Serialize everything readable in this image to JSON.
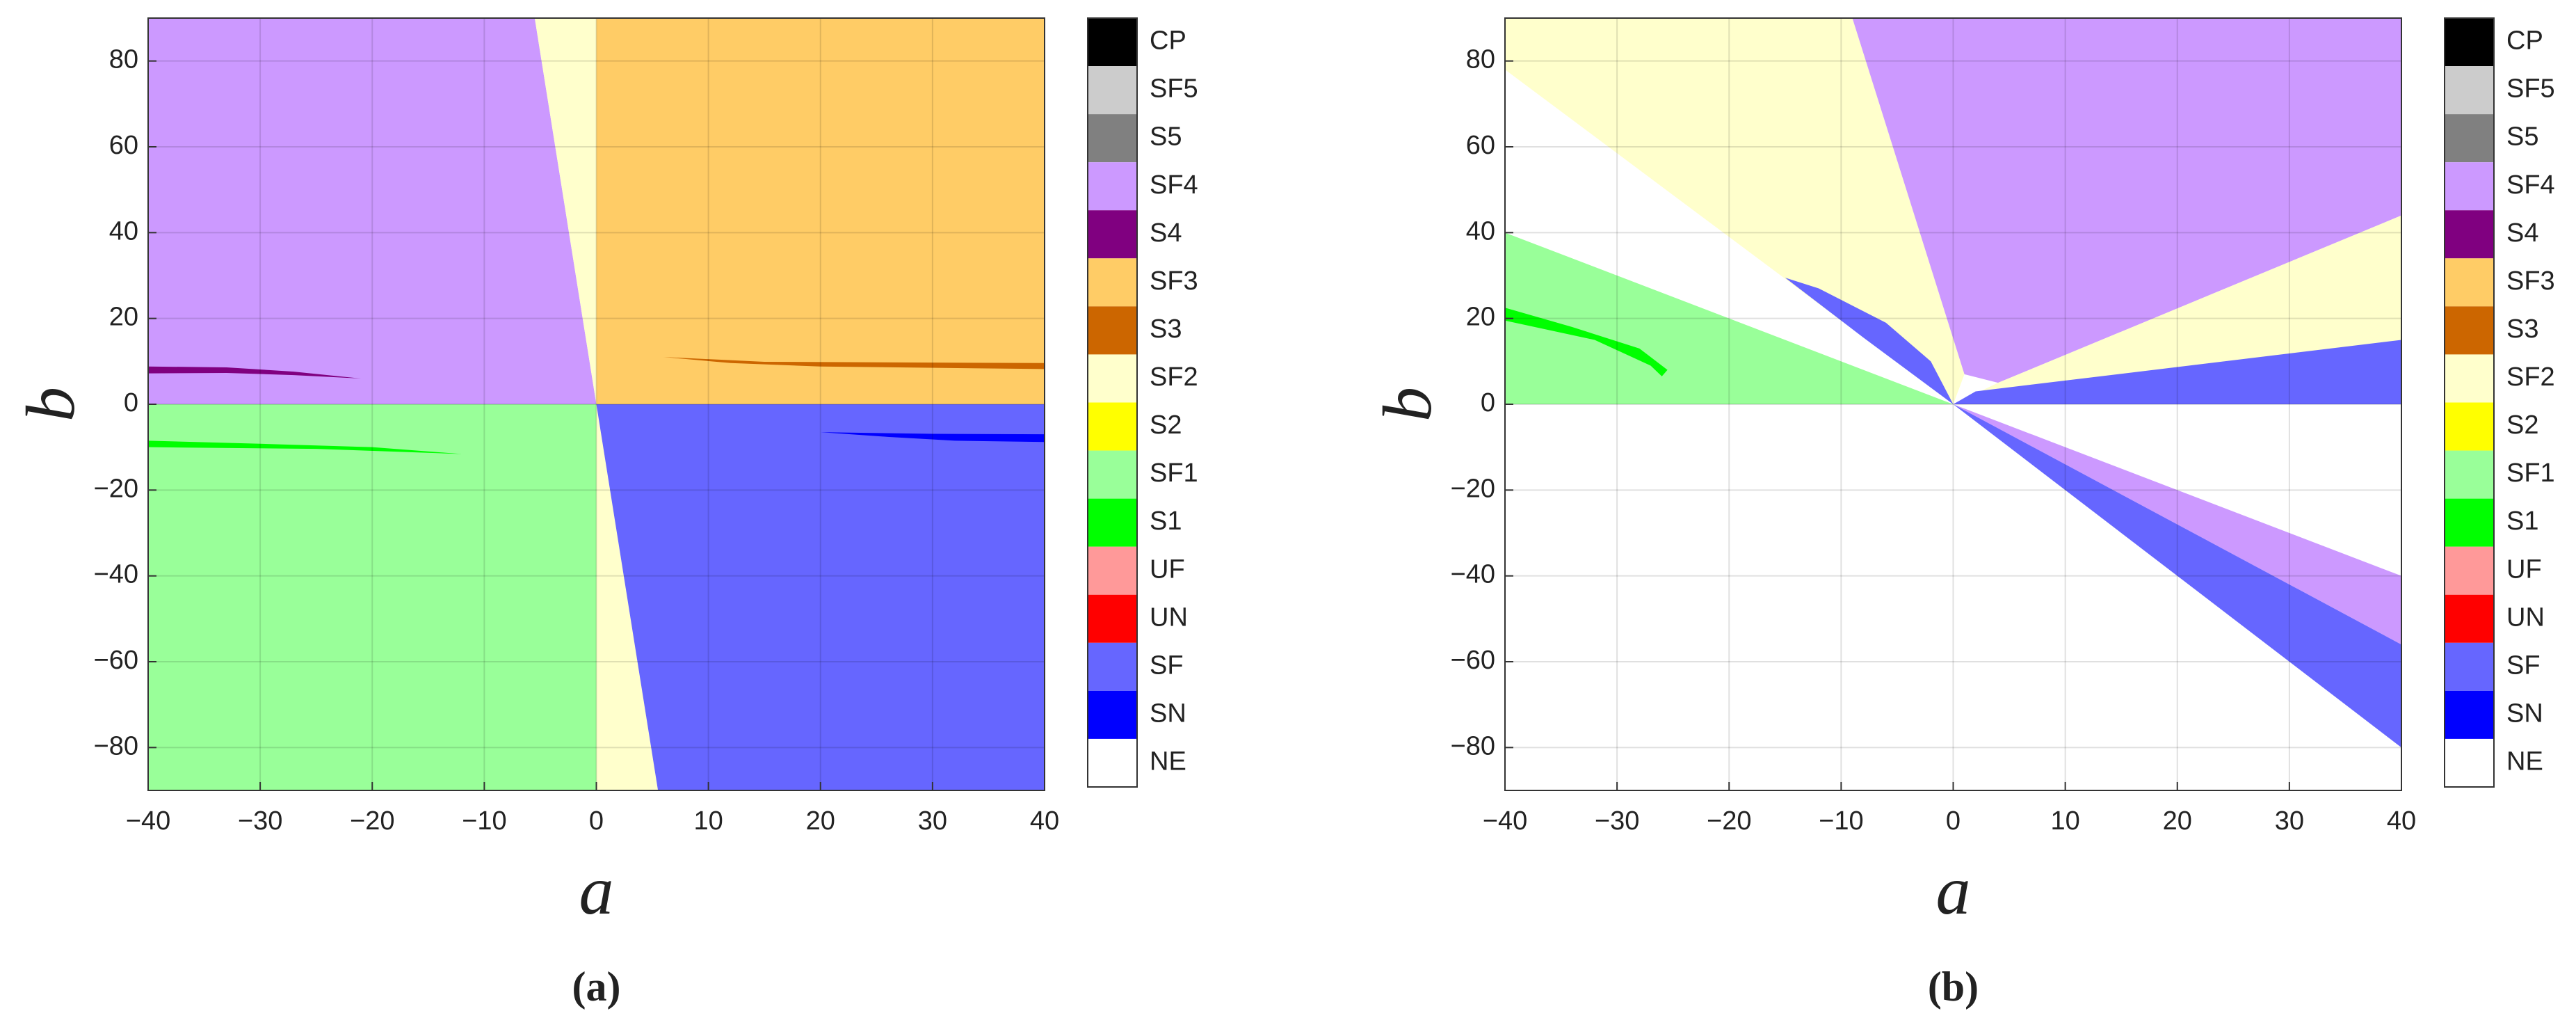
{
  "chart_data": [
    {
      "type": "region",
      "caption": "(a)",
      "xlabel": "a",
      "ylabel": "b",
      "xlim": [
        -40,
        40
      ],
      "ylim": [
        -90,
        90
      ],
      "grid": true,
      "xticks": [
        {
          "value": -40,
          "label": "−40"
        },
        {
          "value": -30,
          "label": "−30"
        },
        {
          "value": -20,
          "label": "−20"
        },
        {
          "value": -10,
          "label": "−10"
        },
        0,
        10,
        20,
        30,
        40
      ],
      "yticks": [
        {
          "value": -80,
          "label": "−80"
        },
        {
          "value": -60,
          "label": "−60"
        },
        {
          "value": -40,
          "label": "−40"
        },
        {
          "value": -20,
          "label": "−20"
        },
        0,
        20,
        40,
        60,
        80
      ],
      "legend": [
        {
          "name": "CP",
          "color": "#000000"
        },
        {
          "name": "SF5",
          "color": "#cccccc"
        },
        {
          "name": "S5",
          "color": "#808080"
        },
        {
          "name": "SF4",
          "color": "#cc99ff"
        },
        {
          "name": "S4",
          "color": "#800080"
        },
        {
          "name": "SF3",
          "color": "#ffcc66"
        },
        {
          "name": "S3",
          "color": "#cc6600"
        },
        {
          "name": "SF2",
          "color": "#ffffcc"
        },
        {
          "name": "S2",
          "color": "#ffff00"
        },
        {
          "name": "SF1",
          "color": "#99ff99"
        },
        {
          "name": "S1",
          "color": "#00ff00"
        },
        {
          "name": "UF",
          "color": "#ff9999"
        },
        {
          "name": "UN",
          "color": "#ff0000"
        },
        {
          "name": "SF",
          "color": "#6666ff"
        },
        {
          "name": "SN",
          "color": "#0000ff"
        },
        {
          "name": "NE",
          "color": "#ffffff"
        }
      ],
      "regions": [
        {
          "color": "#cc99ff",
          "x": [
            -40,
            -40,
            -5.5,
            0
          ],
          "y": [
            0,
            90,
            90,
            0
          ]
        },
        {
          "color": "#ffffcc",
          "x": [
            -5.5,
            0,
            0
          ],
          "y": [
            90,
            90,
            0
          ]
        },
        {
          "color": "#ffcc66",
          "x": [
            0,
            0,
            40,
            40
          ],
          "y": [
            0,
            90,
            90,
            0
          ]
        },
        {
          "color": "#99ff99",
          "x": [
            -40,
            0,
            0,
            -40
          ],
          "y": [
            0,
            0,
            -90,
            -90
          ]
        },
        {
          "color": "#ffffcc",
          "x": [
            0,
            0,
            5.5
          ],
          "y": [
            0,
            -90,
            -90
          ]
        },
        {
          "color": "#6666ff",
          "x": [
            0,
            5.5,
            40,
            40
          ],
          "y": [
            0,
            -90,
            -90,
            0
          ]
        },
        {
          "color": "#800080",
          "x": [
            -40,
            -40,
            -33,
            -27,
            -21,
            -27,
            -33
          ],
          "y": [
            7.2,
            8.8,
            8.6,
            7.6,
            6,
            6.8,
            7.3
          ]
        },
        {
          "color": "#cc6600",
          "x": [
            6,
            15,
            40,
            40,
            20,
            12
          ],
          "y": [
            11,
            9.9,
            9.6,
            8.2,
            8.8,
            9.6
          ]
        },
        {
          "color": "#00ff00",
          "x": [
            -40,
            -40,
            -25,
            -12,
            -20,
            -30
          ],
          "y": [
            -8.5,
            -10,
            -10.4,
            -11.6,
            -10,
            -9.2
          ]
        },
        {
          "color": "#0000ff",
          "x": [
            20,
            30,
            40,
            40,
            32,
            26
          ],
          "y": [
            -6.5,
            -6.9,
            -7,
            -8.8,
            -8.5,
            -7.6
          ]
        }
      ]
    },
    {
      "type": "region",
      "caption": "(b)",
      "xlabel": "a",
      "ylabel": "b",
      "xlim": [
        -40,
        40
      ],
      "ylim": [
        -90,
        90
      ],
      "grid": true,
      "xticks": [
        {
          "value": -40,
          "label": "−40"
        },
        {
          "value": -30,
          "label": "−30"
        },
        {
          "value": -20,
          "label": "−20"
        },
        {
          "value": -10,
          "label": "−10"
        },
        0,
        10,
        20,
        30,
        40
      ],
      "yticks": [
        {
          "value": -80,
          "label": "−80"
        },
        {
          "value": -60,
          "label": "−60"
        },
        {
          "value": -40,
          "label": "−40"
        },
        {
          "value": -20,
          "label": "−20"
        },
        0,
        20,
        40,
        60,
        80
      ],
      "legend": [
        {
          "name": "CP",
          "color": "#000000"
        },
        {
          "name": "SF5",
          "color": "#cccccc"
        },
        {
          "name": "S5",
          "color": "#808080"
        },
        {
          "name": "SF4",
          "color": "#cc99ff"
        },
        {
          "name": "S4",
          "color": "#800080"
        },
        {
          "name": "SF3",
          "color": "#ffcc66"
        },
        {
          "name": "S3",
          "color": "#cc6600"
        },
        {
          "name": "SF2",
          "color": "#ffffcc"
        },
        {
          "name": "S2",
          "color": "#ffff00"
        },
        {
          "name": "SF1",
          "color": "#99ff99"
        },
        {
          "name": "S1",
          "color": "#00ff00"
        },
        {
          "name": "UF",
          "color": "#ff9999"
        },
        {
          "name": "UN",
          "color": "#ff0000"
        },
        {
          "name": "SF",
          "color": "#6666ff"
        },
        {
          "name": "SN",
          "color": "#0000ff"
        },
        {
          "name": "NE",
          "color": "#ffffff"
        }
      ],
      "regions": [
        {
          "color": "#ffffcc",
          "x": [
            -40,
            -40,
            -9,
            1,
            0
          ],
          "y": [
            78,
            90,
            90,
            7,
            0
          ]
        },
        {
          "color": "#6666ff",
          "x": [
            -15,
            -12,
            -6,
            -2,
            0,
            -8
          ],
          "y": [
            29.5,
            27,
            19,
            10,
            0,
            15.5
          ]
        },
        {
          "color": "#99ff99",
          "x": [
            -40,
            0,
            -40
          ],
          "y": [
            40,
            0,
            0
          ]
        },
        {
          "color": "#00ff00",
          "x": [
            -40,
            -40,
            -32,
            -27,
            -26,
            -25.5,
            -28,
            -34
          ],
          "y": [
            22.5,
            19.5,
            15,
            9,
            6.5,
            8,
            13,
            18
          ]
        },
        {
          "color": "#cc99ff",
          "x": [
            -9,
            40,
            40,
            4,
            1
          ],
          "y": [
            90,
            90,
            44,
            5,
            7
          ]
        },
        {
          "color": "#ffffcc",
          "x": [
            0,
            4,
            40,
            40
          ],
          "y": [
            0,
            5,
            44,
            15
          ]
        },
        {
          "color": "#6666ff",
          "x": [
            0,
            2,
            40,
            40
          ],
          "y": [
            0,
            3,
            15,
            0
          ]
        },
        {
          "color": "#cc99ff",
          "x": [
            0,
            40,
            40
          ],
          "y": [
            0,
            -40,
            -56
          ]
        },
        {
          "color": "#6666ff",
          "x": [
            0,
            40,
            40
          ],
          "y": [
            0,
            -56,
            -80
          ]
        }
      ]
    }
  ]
}
